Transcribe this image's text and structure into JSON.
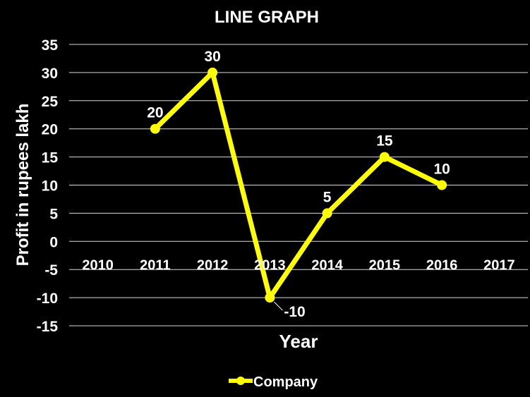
{
  "chart_data": {
    "type": "line",
    "title": "LINE GRAPH",
    "xlabel": "Year",
    "ylabel": "Profit in rupees lakh",
    "categories": [
      "2010",
      "2011",
      "2012",
      "2013",
      "2014",
      "2015",
      "2016",
      "2017"
    ],
    "yticks": [
      35,
      30,
      25,
      20,
      15,
      10,
      5,
      0,
      -5,
      -10,
      -15
    ],
    "ylim": [
      -15,
      35
    ],
    "grid": true,
    "legend": "bottom",
    "series": [
      {
        "name": "Company",
        "color": "#ffff00",
        "values": [
          null,
          20,
          30,
          -10,
          5,
          15,
          10,
          null
        ],
        "labels": [
          "",
          "20",
          "30",
          "-10",
          "5",
          "15",
          "10",
          ""
        ]
      }
    ]
  },
  "colors": {
    "background": "#000000",
    "text": "#ffffff",
    "grid": "#d9d9d9",
    "series": "#ffff00"
  }
}
